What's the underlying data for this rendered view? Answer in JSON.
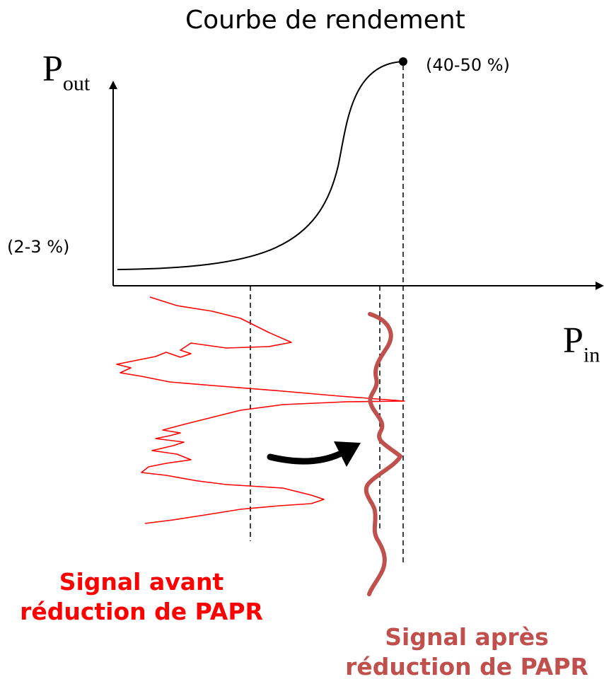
{
  "diagram": {
    "title": "Courbe de rendement",
    "axes": {
      "y_label_main": "P",
      "y_label_sub": "out",
      "x_label_main": "P",
      "x_label_sub": "in"
    },
    "annotations": {
      "high_efficiency": "(40-50 %)",
      "low_efficiency": "(2-3 %)"
    },
    "captions": {
      "before": [
        "Signal avant",
        "réduction de PAPR"
      ],
      "after": [
        "Signal après",
        "réduction de PAPR"
      ]
    },
    "colors": {
      "signal_before": "#ff0000",
      "signal_after": "#c0504d",
      "curve": "#000000",
      "arrow": "#000000"
    }
  }
}
